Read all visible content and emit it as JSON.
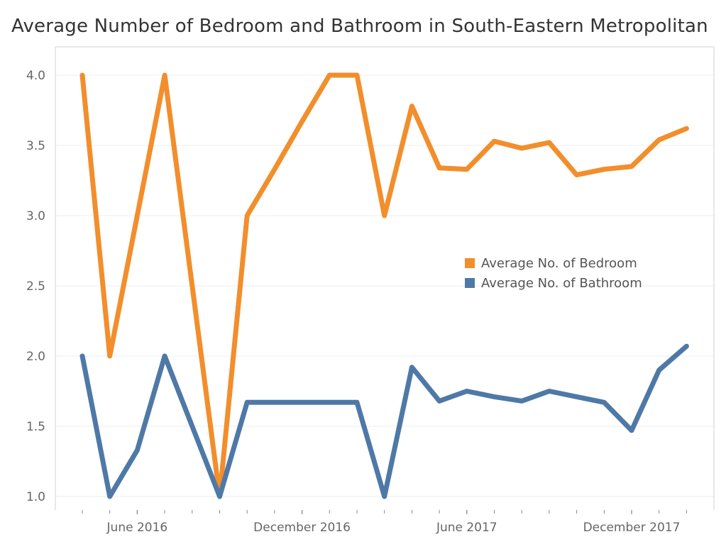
{
  "chart_data": {
    "type": "line",
    "title": "Average Number of Bedroom and Bathroom in South-Eastern Metropolitan",
    "xlabel": "",
    "ylabel": "",
    "ylim": [
      1.0,
      4.0
    ],
    "y_ticks": [
      "1.0",
      "1.5",
      "2.0",
      "2.5",
      "3.0",
      "3.5",
      "4.0"
    ],
    "x_tick_labels": [
      {
        "label": "June 2016",
        "month": "2016-06"
      },
      {
        "label": "December 2016",
        "month": "2016-12"
      },
      {
        "label": "June 2017",
        "month": "2017-06"
      },
      {
        "label": "December 2017",
        "month": "2017-12"
      }
    ],
    "x": [
      "2016-04",
      "2016-05",
      "2016-06",
      "2016-07",
      "2016-08",
      "2016-09",
      "2016-10",
      "2016-11",
      "2016-12",
      "2017-01",
      "2017-02",
      "2017-03",
      "2017-04",
      "2017-05",
      "2017-06",
      "2017-07",
      "2017-08",
      "2017-09",
      "2017-10",
      "2017-11",
      "2017-12",
      "2018-01",
      "2018-02"
    ],
    "series": [
      {
        "name": "Average No. of Bedroom",
        "color": "#F28E2B",
        "values": [
          4.0,
          2.0,
          3.0,
          4.0,
          2.5,
          1.0,
          3.0,
          3.33,
          3.67,
          4.0,
          4.0,
          3.0,
          3.78,
          3.34,
          3.33,
          3.53,
          3.48,
          3.52,
          3.29,
          3.33,
          3.35,
          3.54,
          3.62
        ]
      },
      {
        "name": "Average No. of Bathroom",
        "color": "#4E79A7",
        "values": [
          2.0,
          1.0,
          1.33,
          2.0,
          1.5,
          1.0,
          1.67,
          1.67,
          1.67,
          1.67,
          1.67,
          1.0,
          1.92,
          1.68,
          1.75,
          1.71,
          1.68,
          1.75,
          1.71,
          1.67,
          1.47,
          1.9,
          2.07
        ]
      }
    ],
    "grid": "horizontal",
    "legend_position": "center-right"
  }
}
